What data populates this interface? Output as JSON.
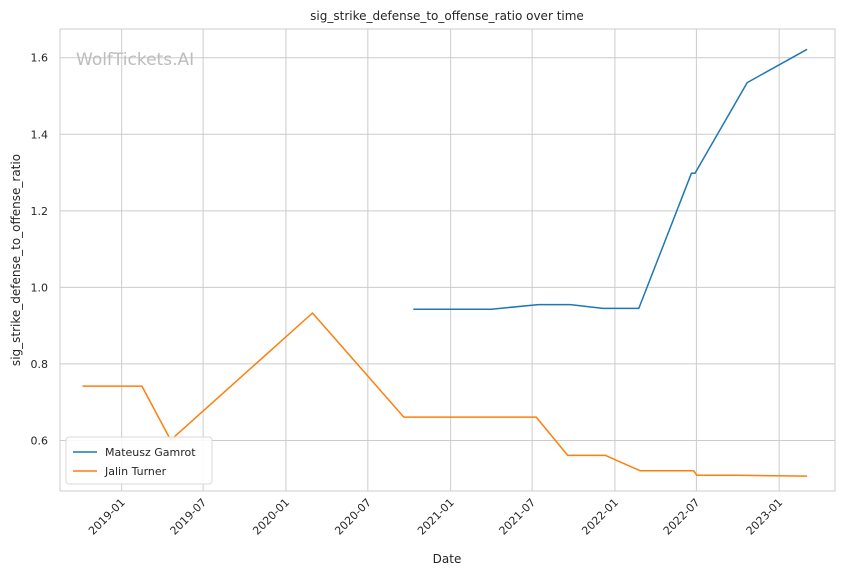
{
  "chart_data": {
    "type": "line",
    "title": "sig_strike_defense_to_offense_ratio over time",
    "xlabel": "Date",
    "ylabel": "sig_strike_defense_to_offense_ratio",
    "watermark": "WolfTickets.AI",
    "x_range": [
      "2018-08-17",
      "2023-05-05"
    ],
    "ylim": [
      0.468,
      1.675
    ],
    "x_ticks": [
      {
        "date": "2019-01-01",
        "label": "2019-01"
      },
      {
        "date": "2019-07-01",
        "label": "2019-07"
      },
      {
        "date": "2020-01-01",
        "label": "2020-01"
      },
      {
        "date": "2020-07-01",
        "label": "2020-07"
      },
      {
        "date": "2021-01-01",
        "label": "2021-01"
      },
      {
        "date": "2021-07-01",
        "label": "2021-07"
      },
      {
        "date": "2022-01-01",
        "label": "2022-01"
      },
      {
        "date": "2022-07-01",
        "label": "2022-07"
      },
      {
        "date": "2023-01-01",
        "label": "2023-01"
      }
    ],
    "y_ticks": [
      0.6,
      0.8,
      1.0,
      1.2,
      1.4,
      1.6
    ],
    "y_tick_labels": [
      "0.6",
      "0.8",
      "1.0",
      "1.2",
      "1.4",
      "1.6"
    ],
    "grid": true,
    "legend_position": "lower-left",
    "series": [
      {
        "name": "Mateusz Gamrot",
        "color": "#1f77b4",
        "points": [
          {
            "x": "2020-10-10",
            "y": 0.943
          },
          {
            "x": "2021-04-01",
            "y": 0.943
          },
          {
            "x": "2021-07-15",
            "y": 0.955
          },
          {
            "x": "2021-09-24",
            "y": 0.955
          },
          {
            "x": "2021-12-05",
            "y": 0.945
          },
          {
            "x": "2022-02-23",
            "y": 0.945
          },
          {
            "x": "2022-06-20",
            "y": 1.298
          },
          {
            "x": "2022-06-28",
            "y": 1.298
          },
          {
            "x": "2022-10-22",
            "y": 1.535
          },
          {
            "x": "2023-03-04",
            "y": 1.622
          }
        ]
      },
      {
        "name": "Jalin Turner",
        "color": "#ff7f0e",
        "points": [
          {
            "x": "2018-10-06",
            "y": 0.742
          },
          {
            "x": "2019-02-15",
            "y": 0.742
          },
          {
            "x": "2019-04-20",
            "y": 0.601
          },
          {
            "x": "2020-02-29",
            "y": 0.933
          },
          {
            "x": "2020-09-19",
            "y": 0.661
          },
          {
            "x": "2021-07-10",
            "y": 0.661
          },
          {
            "x": "2021-09-18",
            "y": 0.561
          },
          {
            "x": "2021-12-11",
            "y": 0.561
          },
          {
            "x": "2022-02-26",
            "y": 0.521
          },
          {
            "x": "2022-06-25",
            "y": 0.521
          },
          {
            "x": "2022-07-02",
            "y": 0.509
          },
          {
            "x": "2022-10-01",
            "y": 0.509
          },
          {
            "x": "2023-03-04",
            "y": 0.507
          }
        ]
      }
    ]
  }
}
